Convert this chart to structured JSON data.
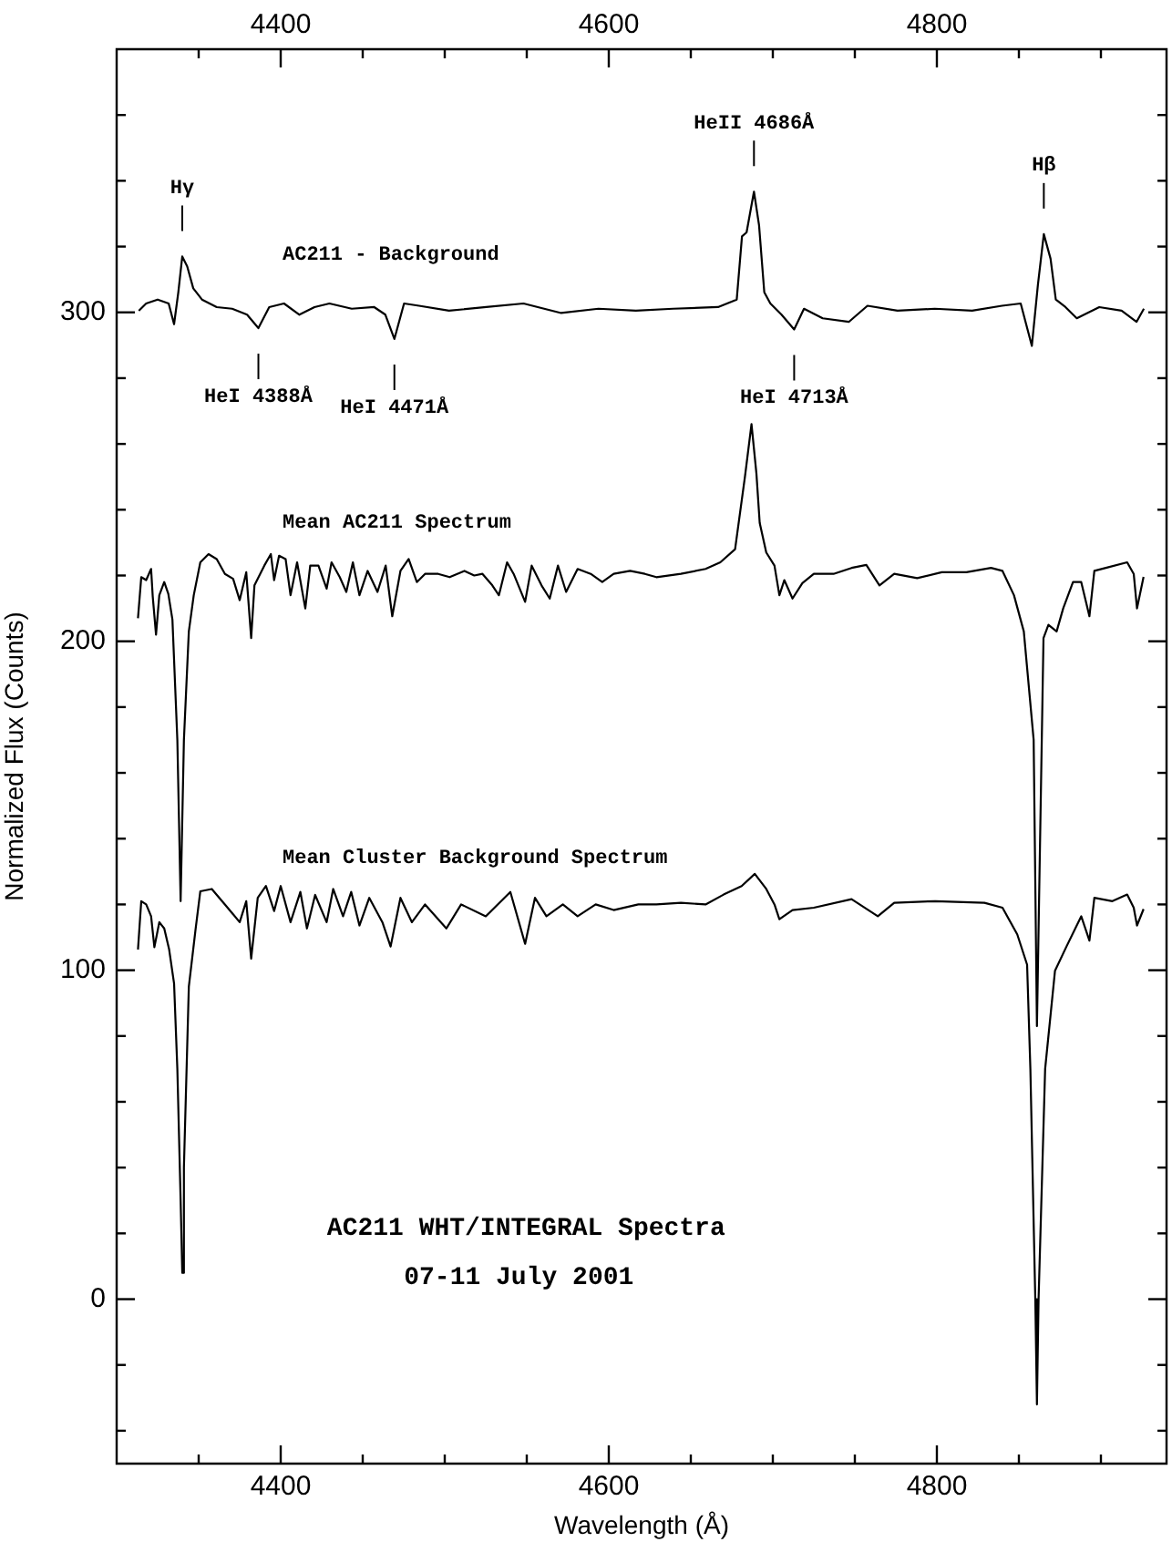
{
  "chart_data": {
    "type": "line",
    "title": "AC211 WHT/INTEGRAL Spectra",
    "subtitle": "07-11 July 2001",
    "xlabel": "Wavelength (Å)",
    "ylabel": "Normalized Flux (Counts)",
    "xlim": [
      4300,
      4940
    ],
    "x2lim": [
      4300,
      4940
    ],
    "ylim": [
      -50,
      380
    ],
    "xticks": [
      {
        "value": 4350,
        "label": null
      },
      4400,
      {
        "value": 4450,
        "label": null
      },
      {
        "value": 4500,
        "label": null
      },
      {
        "value": 4550,
        "label": null
      },
      4600,
      {
        "value": 4650,
        "label": null
      },
      {
        "value": 4700,
        "label": null
      },
      {
        "value": 4750,
        "label": null
      },
      4800,
      {
        "value": 4850,
        "label": null
      },
      {
        "value": 4900,
        "label": null
      }
    ],
    "x2ticks": [
      {
        "value": 4350,
        "label": null
      },
      4400,
      {
        "value": 4450,
        "label": null
      },
      {
        "value": 4500,
        "label": null
      },
      {
        "value": 4550,
        "label": null
      },
      4600,
      {
        "value": 4650,
        "label": null
      },
      {
        "value": 4700,
        "label": null
      },
      {
        "value": 4750,
        "label": null
      },
      4800,
      {
        "value": 4850,
        "label": null
      },
      {
        "value": 4900,
        "label": null
      }
    ],
    "yticks": [
      {
        "value": -40,
        "label": null
      },
      {
        "value": -20,
        "label": null
      },
      0,
      {
        "value": 20,
        "label": null
      },
      {
        "value": 40,
        "label": null
      },
      {
        "value": 60,
        "label": null
      },
      {
        "value": 80,
        "label": null
      },
      100,
      {
        "value": 120,
        "label": null
      },
      {
        "value": 140,
        "label": null
      },
      {
        "value": 160,
        "label": null
      },
      {
        "value": 180,
        "label": null
      },
      200,
      {
        "value": 220,
        "label": null
      },
      {
        "value": 240,
        "label": null
      },
      {
        "value": 260,
        "label": null
      },
      {
        "value": 280,
        "label": null
      },
      300,
      {
        "value": 320,
        "label": null
      },
      {
        "value": 340,
        "label": null
      },
      {
        "value": 360,
        "label": null
      }
    ],
    "grid": false,
    "legend": false,
    "marker": "none",
    "line_style": "solid",
    "annotations": [
      {
        "text": "Hγ",
        "x": 4340,
        "y": 317
      },
      {
        "text": "HeI 4388Å",
        "x": 4386.4,
        "y": 295.2
      },
      {
        "text": "HeI 4471Å",
        "x": 4469.3,
        "y": 291.9
      },
      {
        "text": "HeII 4686Å",
        "x": 4688.5,
        "y": 336.7
      },
      {
        "text": "HeI 4713Å",
        "x": 4713,
        "y": 294.8
      },
      {
        "text": "Hβ",
        "x": 4865.2,
        "y": 323.8
      }
    ],
    "series": [
      {
        "name": "AC211 - Background",
        "color": "#000000",
        "x": [
          4313.5,
          4318,
          4325,
          4331.7,
          4335,
          4337.6,
          4340,
          4343,
          4346.7,
          4352,
          4361,
          4370.4,
          4379.5,
          4386.4,
          4393,
          4402,
          4411.4,
          4420.6,
          4429.7,
          4443.3,
          4457,
          4463.8,
          4469.3,
          4475.2,
          4484.3,
          4502.6,
          4525.3,
          4548,
          4571,
          4593.7,
          4616.5,
          4639.2,
          4666.6,
          4678,
          4681.2,
          4684,
          4688.5,
          4691.6,
          4694.8,
          4698.5,
          4705.3,
          4713,
          4719,
          4730.4,
          4746.3,
          4757.7,
          4776,
          4798.7,
          4821.5,
          4839.7,
          4851.1,
          4857.9,
          4861.6,
          4865.2,
          4869.3,
          4872.5,
          4878.4,
          4885.3,
          4899,
          4912.6,
          4921.7,
          4926.2
        ],
        "values": [
          300.5,
          302.7,
          303.9,
          302.7,
          296.4,
          306.1,
          317,
          314,
          307.3,
          303.9,
          301.6,
          301.1,
          299.3,
          295.2,
          301.6,
          302.7,
          299.3,
          301.6,
          302.7,
          301.1,
          301.6,
          299.3,
          291.9,
          302.7,
          302,
          300.5,
          301.6,
          302.7,
          299.8,
          301.1,
          300.5,
          301.1,
          301.6,
          303.9,
          323.1,
          324.3,
          336.7,
          326.5,
          306.1,
          302.7,
          299.3,
          294.8,
          301.1,
          298.2,
          297.1,
          302,
          300.5,
          301.1,
          300.5,
          302,
          302.7,
          289.8,
          308.4,
          323.8,
          316.3,
          303.9,
          301.6,
          298.2,
          301.6,
          300.5,
          297.1,
          301.1
        ]
      },
      {
        "name": "Mean AC211 Spectrum",
        "color": "#000000",
        "x": [
          4313,
          4315,
          4318,
          4321,
          4322,
          4324,
          4326,
          4329,
          4331.5,
          4334,
          4337,
          4339,
          4341,
          4344,
          4347,
          4351,
          4356,
          4361,
          4366,
          4371,
          4375,
          4379,
          4382,
          4384,
          4390,
          4394,
          4396,
          4399,
          4403,
          4406,
          4410,
          4415,
          4418,
          4423,
          4428,
          4431,
          4436,
          4440,
          4444,
          4448,
          4453,
          4459,
          4464,
          4468,
          4473,
          4478,
          4483,
          4488,
          4496,
          4503,
          4512,
          4518,
          4523,
          4529,
          4533,
          4538,
          4542,
          4549,
          4553,
          4559,
          4564,
          4569,
          4574,
          4581,
          4589,
          4596,
          4603,
          4613,
          4622,
          4629,
          4644,
          4659,
          4668,
          4677,
          4683,
          4687,
          4690,
          4692,
          4696,
          4701,
          4704,
          4707,
          4712,
          4718,
          4725,
          4737,
          4748,
          4757,
          4765,
          4774,
          4788,
          4803,
          4818,
          4833,
          4840,
          4847,
          4853,
          4859,
          4861,
          4865,
          4868,
          4873,
          4877,
          4883,
          4888,
          4893,
          4896,
          4903,
          4916,
          4920,
          4922,
          4926
        ],
        "values": [
          207,
          219.5,
          218.6,
          222,
          213.6,
          202,
          214,
          218,
          214.4,
          206.6,
          170,
          121,
          170,
          203,
          214,
          224,
          226.5,
          225,
          220.5,
          219,
          212.5,
          221,
          201,
          217,
          223,
          226.5,
          218.6,
          226,
          225,
          214,
          224,
          210,
          223,
          223,
          216,
          224,
          219.5,
          215,
          224,
          214,
          221.4,
          215,
          223,
          207.6,
          221.4,
          225,
          218,
          220.5,
          220.5,
          219.5,
          221.4,
          220,
          220.5,
          217,
          214,
          224,
          220.5,
          212,
          223,
          217,
          213,
          223,
          215,
          222,
          220.5,
          218,
          220.5,
          221.4,
          220.5,
          219.5,
          220.5,
          222,
          224,
          228,
          250,
          266,
          251,
          236,
          227,
          223,
          214,
          218.6,
          213,
          217.7,
          220.5,
          220.5,
          222.3,
          223.2,
          217,
          220.5,
          219.2,
          221,
          221,
          222.3,
          221.4,
          214,
          203,
          170,
          83,
          201,
          205,
          203,
          210,
          218,
          218,
          207.6,
          221.4,
          222.3,
          224,
          220.5,
          210,
          219.6
        ]
      },
      {
        "name": "Mean Cluster Background Spectrum",
        "color": "#000000",
        "x": [
          4313,
          4315,
          4318,
          4321,
          4323,
          4326,
          4329,
          4332,
          4335,
          4337,
          4339,
          4340,
          4341,
          4344,
          4348,
          4351,
          4358,
          4366,
          4375,
          4379,
          4382,
          4386,
          4391,
          4396,
          4400,
          4406,
          4412,
          4416,
          4421,
          4428,
          4432,
          4438,
          4443,
          4448,
          4454,
          4462,
          4467,
          4473,
          4480,
          4488,
          4501,
          4510,
          4525,
          4540,
          4549,
          4555,
          4562,
          4572,
          4581,
          4592,
          4603,
          4618,
          4629,
          4644,
          4659,
          4670,
          4681,
          4689,
          4696,
          4701,
          4704,
          4712,
          4725,
          4748,
          4764,
          4774,
          4799,
          4829,
          4840,
          4849,
          4855,
          4857,
          4860,
          4861,
          4862,
          4866,
          4872,
          4879,
          4888,
          4893,
          4896,
          4907,
          4916,
          4920,
          4922,
          4926
        ],
        "values": [
          106.3,
          121,
          120,
          116.4,
          107,
          114.6,
          112.7,
          106.3,
          96,
          70,
          30,
          8,
          40,
          95,
          112,
          124,
          124.7,
          120,
          114.6,
          121,
          103.5,
          122,
          125.6,
          118,
          125.6,
          114.6,
          123.8,
          112.7,
          122.9,
          114.6,
          124.7,
          116.4,
          123.8,
          113.6,
          122,
          114.6,
          107.2,
          122,
          114.6,
          120,
          112.7,
          120,
          116.4,
          123.8,
          108,
          122,
          116.4,
          120,
          116.4,
          120,
          118.3,
          120,
          120,
          120.5,
          120,
          123,
          125.6,
          129.3,
          124.7,
          120,
          115.5,
          118.3,
          119,
          121.6,
          116.4,
          120.5,
          121,
          120.5,
          119,
          110.9,
          101.7,
          70,
          0,
          -32,
          0,
          70,
          99.8,
          107.2,
          116.4,
          109,
          122,
          121,
          123,
          119,
          113.6,
          118.6
        ]
      }
    ]
  }
}
